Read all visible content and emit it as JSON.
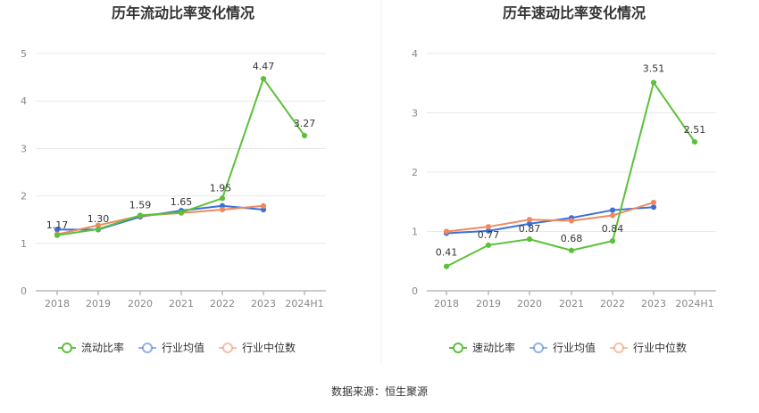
{
  "source": "数据来源：恒生聚源",
  "colors": {
    "company": "#5cc03a",
    "avg": "#3b6fd8",
    "median": "#ef8a5e"
  },
  "chart_data": [
    {
      "type": "line",
      "title": "历年流动比率变化情况",
      "categories": [
        "2018",
        "2019",
        "2020",
        "2021",
        "2022",
        "2023",
        "2024H1"
      ],
      "ylim": [
        0,
        5
      ],
      "yticks": [
        "0",
        "1",
        "2",
        "3",
        "4",
        "5"
      ],
      "grid": true,
      "legend": "bottom",
      "series": [
        {
          "name": "流动比率",
          "key": "company",
          "values": [
            1.17,
            1.3,
            1.59,
            1.65,
            1.95,
            4.47,
            3.27
          ],
          "labels": [
            "1.17",
            "1.30",
            "1.59",
            "1.65",
            "1.95",
            "4.47",
            "3.27"
          ]
        },
        {
          "name": "行业均值",
          "key": "avg",
          "values": [
            1.29,
            1.29,
            1.56,
            1.69,
            1.79,
            1.71,
            null
          ]
        },
        {
          "name": "行业中位数",
          "key": "median",
          "values": [
            1.19,
            1.38,
            1.58,
            1.64,
            1.71,
            1.79,
            null
          ]
        }
      ]
    },
    {
      "type": "line",
      "title": "历年速动比率变化情况",
      "categories": [
        "2018",
        "2019",
        "2020",
        "2021",
        "2022",
        "2023",
        "2024H1"
      ],
      "ylim": [
        0,
        4
      ],
      "yticks": [
        "0",
        "1",
        "2",
        "3",
        "4"
      ],
      "grid": true,
      "legend": "bottom",
      "series": [
        {
          "name": "速动比率",
          "key": "company",
          "values": [
            0.41,
            0.77,
            0.87,
            0.68,
            0.84,
            3.51,
            2.51
          ],
          "labels": [
            "0.41",
            "0.77",
            "0.87",
            "0.68",
            "0.84",
            "3.51",
            "2.51"
          ]
        },
        {
          "name": "行业均值",
          "key": "avg",
          "values": [
            0.97,
            1.01,
            1.13,
            1.23,
            1.36,
            1.41,
            null
          ]
        },
        {
          "name": "行业中位数",
          "key": "median",
          "values": [
            1.0,
            1.08,
            1.2,
            1.18,
            1.27,
            1.49,
            null
          ]
        }
      ]
    }
  ]
}
